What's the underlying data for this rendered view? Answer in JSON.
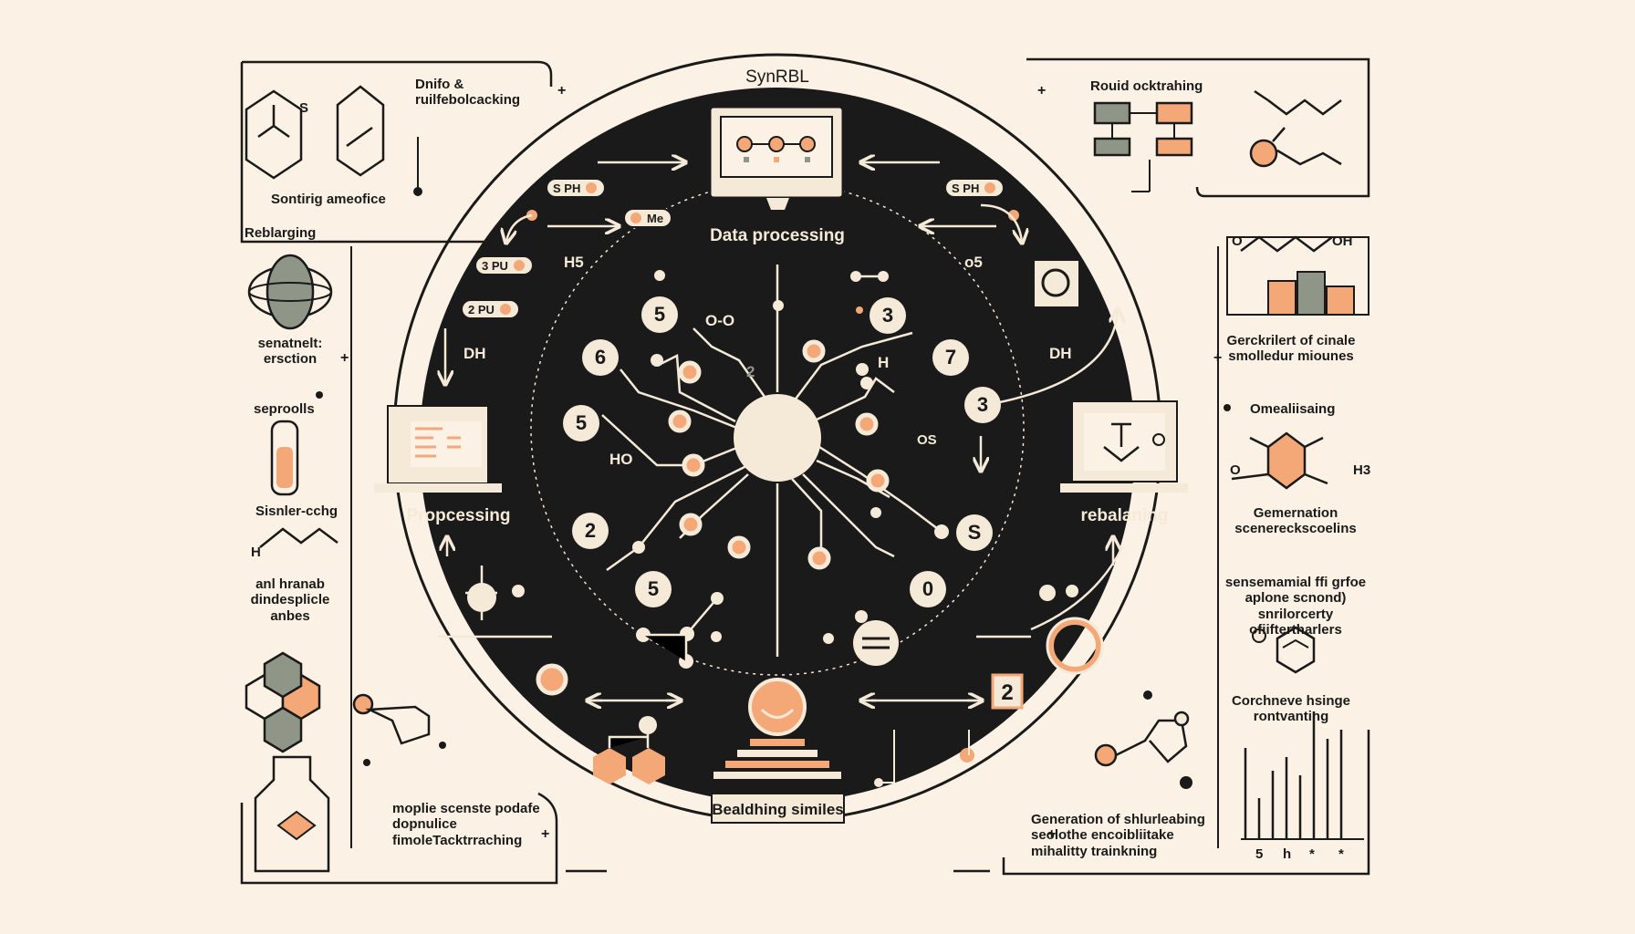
{
  "title": "SynRBL",
  "center": {
    "top_label": "Data processing",
    "left_label": "Propcessing",
    "right_label": "rebalaning",
    "bottom_label": "Bealdhing similes"
  },
  "left_panel": {
    "top_box_label": "Dnifo & ruilfebolcacking",
    "top_box_caption": "Sontirig ameofice",
    "s_mark": "S",
    "reblarging": "Reblarging",
    "senatnelt": "senatnelt: ersction",
    "seproolls": "seproolls",
    "sisnler": "Sisnler-cchg",
    "h_mark": "H",
    "and_hranab": "anl hranab dindesplicle anbes",
    "bottom_box_label": "moplie scenste podafe dopnulice fimoleTacktrraching"
  },
  "right_panel": {
    "top_box_label": "Rouid ocktrahing",
    "molecule_oh": "OH",
    "molecule_o": "O",
    "gerckrilert": "Gerckrilert of cinale smolledur miounes",
    "omealiisaing": "Omealiisaing",
    "h3_mark": "H3",
    "o_mark": "O",
    "gemernation": "Gemernation scenereckscoelins",
    "sensemamial": "sensemamial ffi grfoe aplone scnond) snrilorcerty ofiiftertharlers",
    "corchneve": "Corchneve hsinge rontvanting",
    "bottom_box_label": "Generation of shlurleabing seolothe encoibliitake mihalitty trainkning",
    "chart_ticks": [
      "5",
      "h",
      "*",
      "*"
    ]
  },
  "inner": {
    "pills": [
      "S PH",
      "Me",
      "3 PU",
      "2 PU",
      "S PH"
    ],
    "hs_label": "H5",
    "o5_label": "o5",
    "dh_left": "DH",
    "dh_right": "DH",
    "h_inner": "H",
    "ho_inner": "HO",
    "os_inner": "OS",
    "two_inner": "2",
    "oo_inner": "O-O",
    "box_num": "2",
    "numbers": [
      "5",
      "6",
      "5",
      "2",
      "5",
      "3",
      "7",
      "3",
      "S",
      "0"
    ]
  },
  "colors": {
    "background": "#fbf1e4",
    "dark": "#1a1a1a",
    "accent": "#f4a877",
    "cream": "#f5e9d8",
    "gray": "#8f9688"
  }
}
